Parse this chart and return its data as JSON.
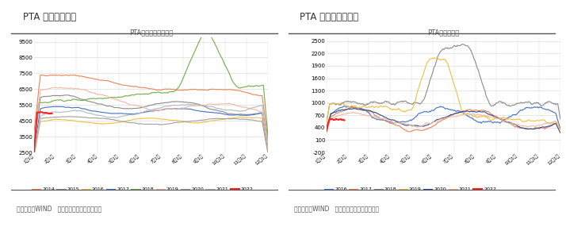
{
  "chart1_title": "PTA 现货价格走势",
  "chart1_subtitle": "PTA华东地区现货价格",
  "chart1_ylim": [
    2500,
    9800
  ],
  "chart1_yticks": [
    2500,
    3500,
    4500,
    5500,
    6500,
    7500,
    8500,
    9500
  ],
  "chart1_years": [
    "2014",
    "2015",
    "2016",
    "2017",
    "2018",
    "2019",
    "2020",
    "2021",
    "2022"
  ],
  "chart1_colors": [
    "#E8845A",
    "#8B8B8B",
    "#F0C040",
    "#4472C4",
    "#70AD47",
    "#F4B8A0",
    "#A0A0A0",
    "#B0B8C8",
    "#FF2020"
  ],
  "chart2_title": "PTA 现货加工费走势",
  "chart2_subtitle": "PTA现货加工费",
  "chart2_ylim": [
    -200,
    2600
  ],
  "chart2_yticks": [
    -200,
    100,
    400,
    700,
    1000,
    1300,
    1600,
    1900,
    2200,
    2500
  ],
  "chart2_years": [
    "2016",
    "2017",
    "2018",
    "2019",
    "2020",
    "2021",
    "2022"
  ],
  "chart2_colors": [
    "#4472C4",
    "#E8845A",
    "#8B8B8B",
    "#F0C040",
    "#2E4B8F",
    "#F4B8A0",
    "#FF2020"
  ],
  "xticklabels": [
    "1月1日",
    "2月1日",
    "3月1日",
    "4月1日",
    "5月1日",
    "6月1日",
    "7月1日",
    "8月1日",
    "9月1日",
    "10月1日",
    "11月1日",
    "12月1日"
  ],
  "source_text": "资料来源：WIND   长江期货棉纺产业服务中心",
  "bg_color": "#FFFFFF",
  "grid_color": "#DDDDDD",
  "n_points": 365
}
